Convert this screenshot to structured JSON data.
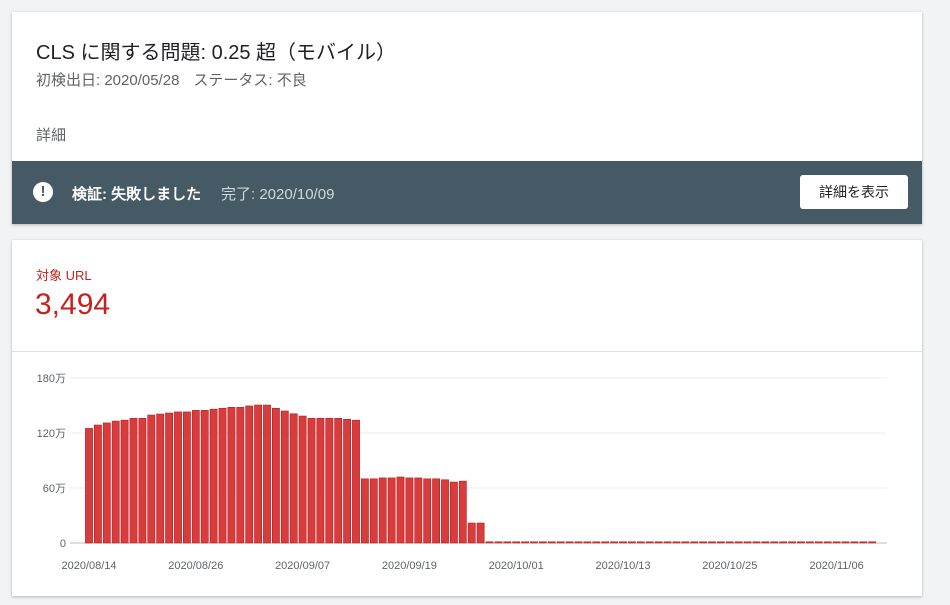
{
  "issue": {
    "title": "CLS に関する問題: 0.25 超（モバイル）",
    "first_detected": "初検出日: 2020/05/28",
    "status": "ステータス: 不良",
    "details_heading": "詳細"
  },
  "validation": {
    "icon": "exclamation-circle-icon",
    "status": "検証: 失敗しました",
    "completed": "完了: 2020/10/09",
    "button_label": "詳細を表示",
    "band_color": "#455a64"
  },
  "metric": {
    "label": "対象 URL",
    "value": "3,494",
    "color": "#c5221f"
  },
  "chart_data": {
    "type": "bar",
    "bar_color": "#d93c3c",
    "ylim": [
      0,
      180
    ],
    "yticks": [
      0,
      60,
      120,
      180
    ],
    "ytick_labels": [
      "0",
      "60万",
      "120万",
      "180万"
    ],
    "grid": true,
    "x": [
      "2020/08/14",
      "2020/08/15",
      "2020/08/16",
      "2020/08/17",
      "2020/08/18",
      "2020/08/19",
      "2020/08/20",
      "2020/08/21",
      "2020/08/22",
      "2020/08/23",
      "2020/08/24",
      "2020/08/25",
      "2020/08/26",
      "2020/08/27",
      "2020/08/28",
      "2020/08/29",
      "2020/08/30",
      "2020/08/31",
      "2020/09/01",
      "2020/09/02",
      "2020/09/03",
      "2020/09/04",
      "2020/09/05",
      "2020/09/06",
      "2020/09/07",
      "2020/09/08",
      "2020/09/09",
      "2020/09/10",
      "2020/09/11",
      "2020/09/12",
      "2020/09/13",
      "2020/09/14",
      "2020/09/15",
      "2020/09/16",
      "2020/09/17",
      "2020/09/18",
      "2020/09/19",
      "2020/09/20",
      "2020/09/21",
      "2020/09/22",
      "2020/09/23",
      "2020/09/24",
      "2020/09/25",
      "2020/09/26",
      "2020/09/27",
      "2020/09/28",
      "2020/09/29",
      "2020/09/30",
      "2020/10/01",
      "2020/10/02",
      "2020/10/03",
      "2020/10/04",
      "2020/10/05",
      "2020/10/06",
      "2020/10/07",
      "2020/10/08",
      "2020/10/09",
      "2020/10/10",
      "2020/10/11",
      "2020/10/12",
      "2020/10/13",
      "2020/10/14",
      "2020/10/15",
      "2020/10/16",
      "2020/10/17",
      "2020/10/18",
      "2020/10/19",
      "2020/10/20",
      "2020/10/21",
      "2020/10/22",
      "2020/10/23",
      "2020/10/24",
      "2020/10/25",
      "2020/10/26",
      "2020/10/27",
      "2020/10/28",
      "2020/10/29",
      "2020/10/30",
      "2020/10/31",
      "2020/11/01",
      "2020/11/02",
      "2020/11/03",
      "2020/11/04",
      "2020/11/05",
      "2020/11/06",
      "2020/11/07",
      "2020/11/08",
      "2020/11/09",
      "2020/11/10"
    ],
    "xtick_labels": [
      "2020/08/14",
      "2020/08/26",
      "2020/09/07",
      "2020/09/19",
      "2020/10/01",
      "2020/10/13",
      "2020/10/25",
      "2020/11/06"
    ],
    "values": [
      125,
      128.7,
      131,
      133,
      134,
      136,
      136,
      139.6,
      140.7,
      141.8,
      143,
      143,
      144.7,
      144.7,
      146,
      147,
      148,
      148,
      149.5,
      150.5,
      150.5,
      147,
      144,
      141,
      138.5,
      136,
      136,
      136,
      136,
      135,
      134,
      70,
      70,
      71,
      71,
      72,
      71,
      71,
      70,
      70,
      69,
      66.5,
      67.5,
      21.8,
      21.8,
      0,
      0,
      0,
      0,
      0,
      0,
      0,
      0,
      0,
      0,
      0,
      0,
      0,
      0,
      0,
      0,
      0,
      0,
      0,
      0,
      0,
      0,
      0,
      0,
      0,
      0,
      0,
      0,
      0,
      0,
      0,
      0,
      0,
      0,
      0,
      0,
      0,
      0,
      0,
      0,
      0,
      0,
      0,
      0
    ]
  }
}
